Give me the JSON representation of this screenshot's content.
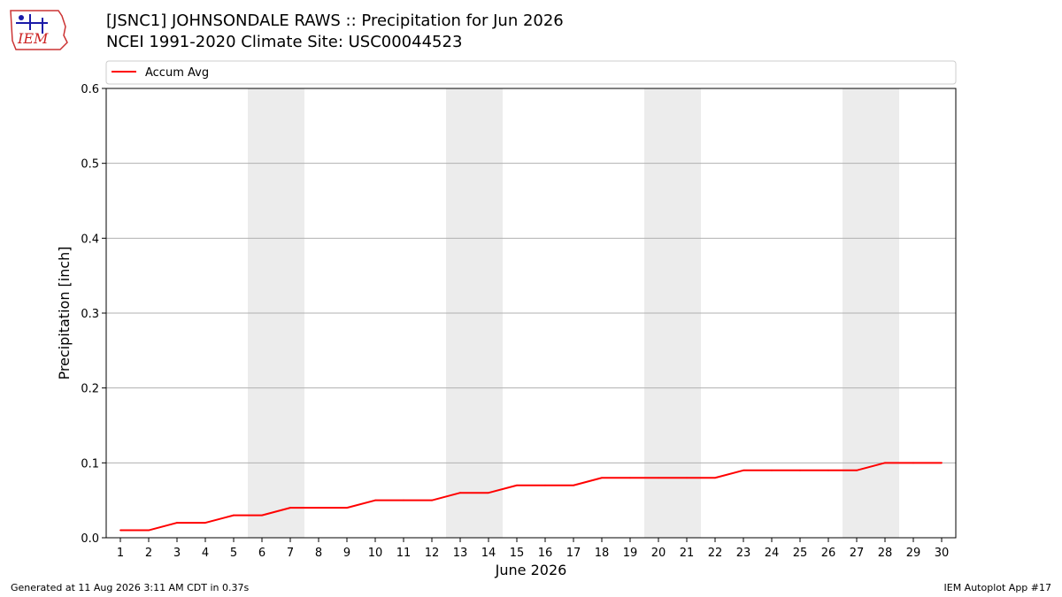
{
  "header": {
    "title_line1": "[JSNC1] JOHNSONDALE RAWS :: Precipitation for Jun 2026",
    "title_line2": "NCEI 1991-2020 Climate Site: USC00044523",
    "logo_text": "IEM"
  },
  "footer": {
    "generated": "Generated at 11 Aug 2026 3:11 AM CDT in 0.37s",
    "app": "IEM Autoplot App #17"
  },
  "chart_data": {
    "type": "line",
    "xlabel": "June 2026",
    "ylabel": "Precipitation [inch]",
    "x": [
      1,
      2,
      3,
      4,
      5,
      6,
      7,
      8,
      9,
      10,
      11,
      12,
      13,
      14,
      15,
      16,
      17,
      18,
      19,
      20,
      21,
      22,
      23,
      24,
      25,
      26,
      27,
      28,
      29,
      30
    ],
    "ylim": [
      0,
      0.6
    ],
    "xlim": [
      0.5,
      30.5
    ],
    "yticks": [
      "0.0",
      "0.1",
      "0.2",
      "0.3",
      "0.4",
      "0.5",
      "0.6"
    ],
    "xticks": [
      "1",
      "2",
      "3",
      "4",
      "5",
      "6",
      "7",
      "8",
      "9",
      "10",
      "11",
      "12",
      "13",
      "14",
      "15",
      "16",
      "17",
      "18",
      "19",
      "20",
      "21",
      "22",
      "23",
      "24",
      "25",
      "26",
      "27",
      "28",
      "29",
      "30"
    ],
    "grid": "horizontal",
    "legend_position": "top",
    "weekend_shading": [
      [
        6,
        7
      ],
      [
        13,
        14
      ],
      [
        20,
        21
      ],
      [
        27,
        28
      ]
    ],
    "series": [
      {
        "name": "Accum Avg",
        "color": "#ff0000",
        "values": [
          0.01,
          0.01,
          0.02,
          0.02,
          0.03,
          0.03,
          0.04,
          0.04,
          0.04,
          0.05,
          0.05,
          0.05,
          0.06,
          0.06,
          0.07,
          0.07,
          0.07,
          0.08,
          0.08,
          0.08,
          0.08,
          0.08,
          0.09,
          0.09,
          0.09,
          0.09,
          0.09,
          0.1,
          0.1,
          0.1
        ]
      }
    ]
  }
}
